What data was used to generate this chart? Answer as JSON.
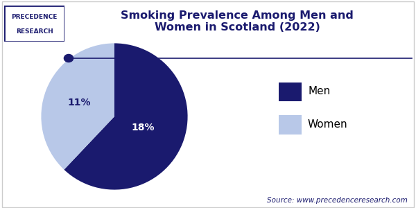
{
  "title": "Smoking Prevalence Among Men and\nWomen in Scotland (2022)",
  "slices": [
    18,
    11
  ],
  "labels": [
    "Men",
    "Women"
  ],
  "colors": [
    "#1a1a6e",
    "#b8c8e8"
  ],
  "pct_labels": [
    "18%",
    "11%"
  ],
  "pct_colors": [
    "white",
    "#1a1a6e"
  ],
  "legend_labels": [
    "Men",
    "Women"
  ],
  "source_text": "Source: www.precedenceresearch.com",
  "source_color": "#1a1a6e",
  "title_color": "#1a1a6e",
  "bg_color": "#ffffff",
  "logo_text1": "PRECEDENCE",
  "logo_text2": "RESEARCH",
  "separator_color": "#1a1a6e",
  "dot_color": "#1a1a6e",
  "border_color": "#cccccc",
  "title_fontsize": 11.5,
  "label_fontsize": 10,
  "legend_fontsize": 11,
  "source_fontsize": 7.5
}
